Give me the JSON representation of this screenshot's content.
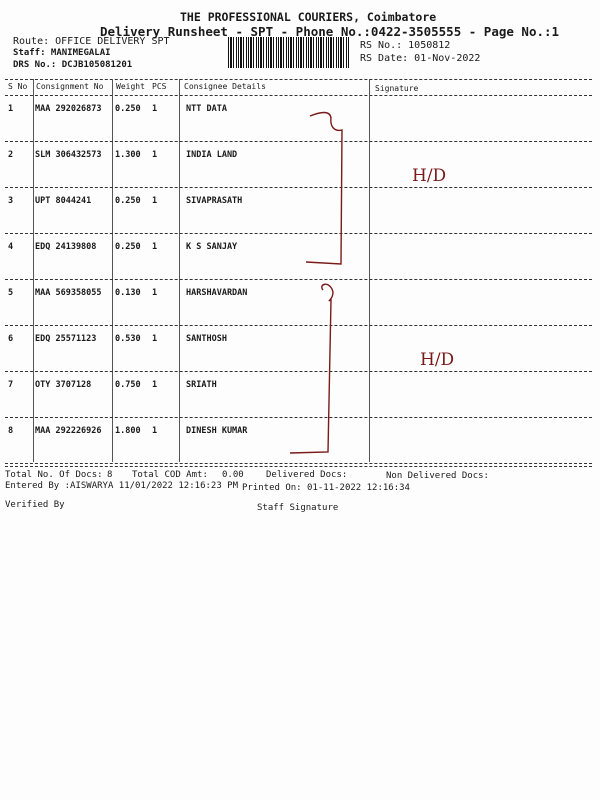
{
  "header": {
    "company": "THE PROFESSIONAL COURIERS, Coimbatore",
    "subtitle": "Delivery Runsheet - SPT - Phone No.:0422-3505555 - Page No.:1",
    "route": "Route: OFFICE DELIVERY SPT",
    "staff": "Staff: MANIMEGALAI",
    "drs_no": "DRS No.: DCJB105081201",
    "rs_no": "RS No.: 1050812",
    "rs_date": "RS Date: 01-Nov-2022"
  },
  "table": {
    "columns": [
      "S No",
      "Consignment No",
      "Weight",
      "PCS",
      "Consignee Details",
      "Signature"
    ],
    "rows": [
      {
        "sno": "1",
        "consignment": "MAA 292026873",
        "weight": "0.250",
        "pcs": "1",
        "consignee": "NTT DATA"
      },
      {
        "sno": "2",
        "consignment": "SLM 306432573",
        "weight": "1.300",
        "pcs": "1",
        "consignee": "INDIA LAND"
      },
      {
        "sno": "3",
        "consignment": "UPT 8044241",
        "weight": "0.250",
        "pcs": "1",
        "consignee": "SIVAPRASATH"
      },
      {
        "sno": "4",
        "consignment": "EDQ 24139808",
        "weight": "0.250",
        "pcs": "1",
        "consignee": "K S SANJAY"
      },
      {
        "sno": "5",
        "consignment": "MAA 569358055",
        "weight": "0.130",
        "pcs": "1",
        "consignee": "HARSHAVARDAN"
      },
      {
        "sno": "6",
        "consignment": "EDQ 25571123",
        "weight": "0.530",
        "pcs": "1",
        "consignee": "SANTHOSH"
      },
      {
        "sno": "7",
        "consignment": "OTY 3707128",
        "weight": "0.750",
        "pcs": "1",
        "consignee": "SRIATH"
      },
      {
        "sno": "8",
        "consignment": "MAA 292226926",
        "weight": "1.800",
        "pcs": "1",
        "consignee": "DINESH KUMAR"
      }
    ]
  },
  "handwriting": {
    "note1": "H/D",
    "note2": "H/D",
    "ink_color": "#7a1a1a"
  },
  "footer": {
    "total_docs_label": "Total No. Of Docs:",
    "total_docs": "8",
    "total_cod_label": "Total COD Amt:",
    "total_cod": "0.00",
    "delivered_label": "Delivered Docs:",
    "non_delivered_label": "Non Delivered Docs:",
    "entered_by": "Entered By :AISWARYA 11/01/2022 12:16:23 PM",
    "printed_on": "Printed On: 01-11-2022 12:16:34",
    "verified_by": "Verified By",
    "staff_signature": "Staff Signature"
  }
}
